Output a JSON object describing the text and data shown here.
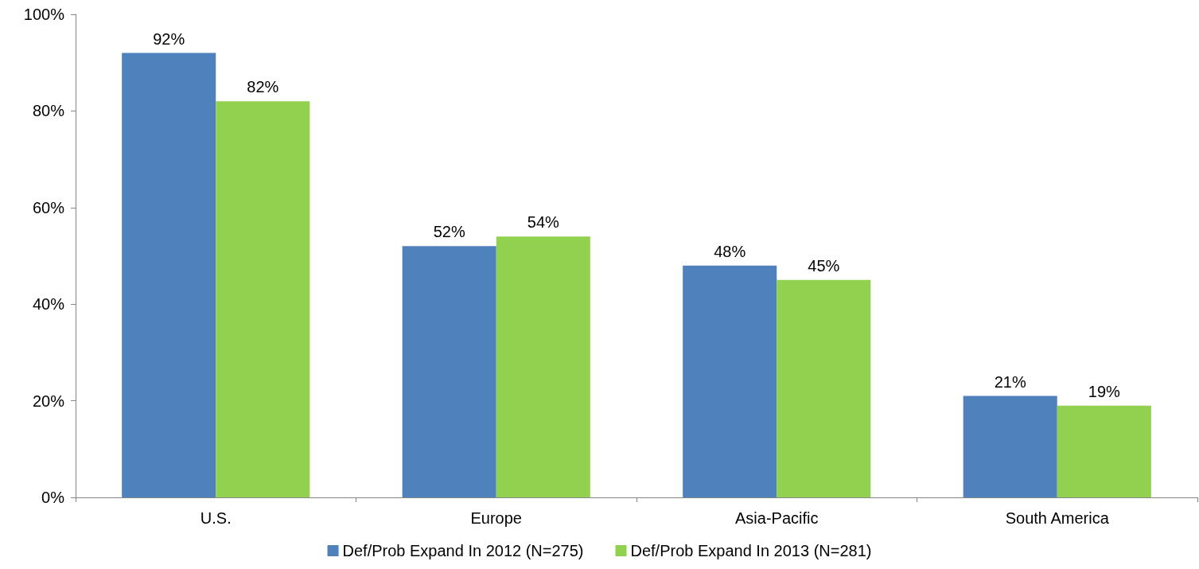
{
  "chart_data": {
    "type": "bar",
    "categories": [
      "U.S.",
      "Europe",
      "Asia-Pacific",
      "South America"
    ],
    "series": [
      {
        "name": "Def/Prob Expand In 2012 (N=275)",
        "color": "#4f81bd",
        "values": [
          92,
          52,
          48,
          21
        ],
        "value_labels": [
          "92%",
          "52%",
          "48%",
          "21%"
        ]
      },
      {
        "name": "Def/Prob Expand In 2013 (N=281)",
        "color": "#92d050",
        "values": [
          82,
          54,
          45,
          19
        ],
        "value_labels": [
          "82%",
          "54%",
          "45%",
          "19%"
        ]
      }
    ],
    "ylim": [
      0,
      100
    ],
    "yticks": [
      {
        "value": 0,
        "label": "0%"
      },
      {
        "value": 20,
        "label": "20%"
      },
      {
        "value": 40,
        "label": "40%"
      },
      {
        "value": 60,
        "label": "60%"
      },
      {
        "value": 80,
        "label": "80%"
      },
      {
        "value": 100,
        "label": "100%"
      }
    ],
    "grid": false,
    "legend": "bottom"
  }
}
